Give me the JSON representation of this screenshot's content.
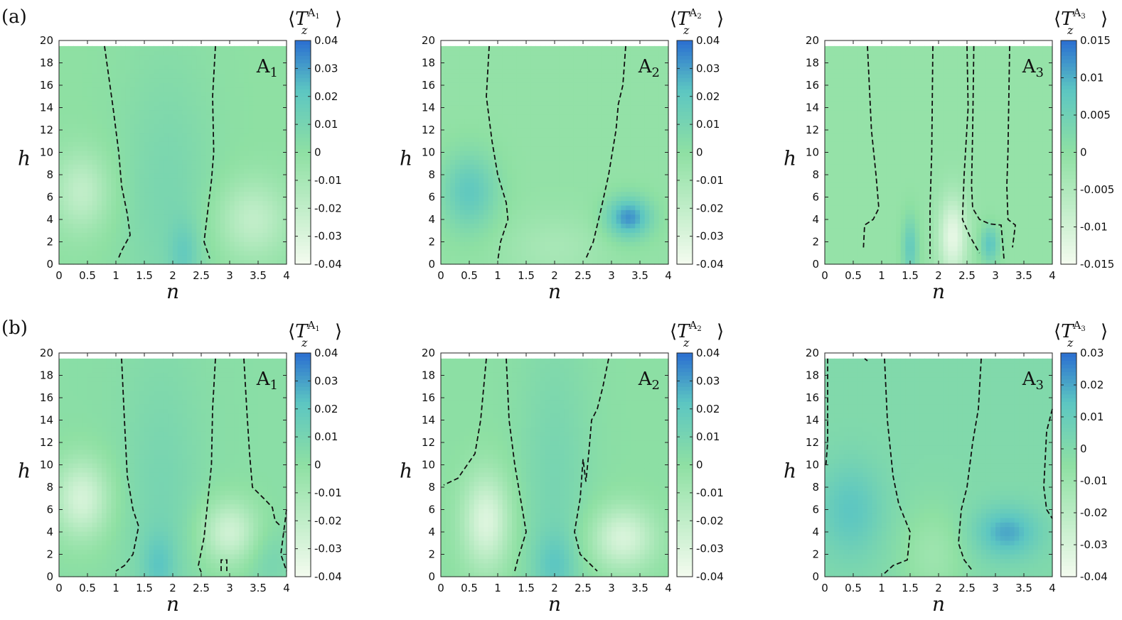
{
  "figure": {
    "row_labels": [
      "(a)",
      "(b)"
    ],
    "colors": {
      "cmap_low": "#f4fbef",
      "cmap_mid": "#8ee0a3",
      "cmap_high_a": "#5cc6c2",
      "cmap_high": "#2b6fd1",
      "contour": "#111111"
    }
  },
  "chart_data": [
    {
      "type": "heatmap",
      "row": "(a)",
      "panel_label": "A1",
      "xlabel": "n",
      "ylabel": "h",
      "xlim": [
        0,
        4
      ],
      "ylim": [
        0,
        20
      ],
      "xticks": [
        "0",
        "0.5",
        "1",
        "1.5",
        "2",
        "2.5",
        "3",
        "3.5",
        "4"
      ],
      "yticks": [
        "0",
        "2",
        "4",
        "6",
        "8",
        "10",
        "12",
        "14",
        "16",
        "18",
        "20"
      ],
      "colorbar": {
        "title": "⟨T_z^A1⟩",
        "range": [
          -0.04,
          0.04
        ],
        "ticks": [
          "-0.04",
          "-0.03",
          "-0.02",
          "-0.01",
          "0",
          "0.01",
          "0.02",
          "0.03",
          "0.04"
        ]
      },
      "background": 0.0,
      "features": [
        {
          "n": 1.9,
          "h": 6,
          "v": 0.009,
          "sn": 0.6,
          "sh": 9
        },
        {
          "n": 2.2,
          "h": 1,
          "v": 0.012,
          "sn": 0.18,
          "sh": 2
        },
        {
          "n": 0.4,
          "h": 6.5,
          "v": -0.02,
          "sn": 0.35,
          "sh": 2.5
        },
        {
          "n": 3.4,
          "h": 4,
          "v": -0.02,
          "sn": 0.45,
          "sh": 2.5
        }
      ],
      "contours": [
        [
          [
            0.8,
            19.5
          ],
          [
            0.95,
            14
          ],
          [
            1.05,
            10
          ],
          [
            1.1,
            7
          ],
          [
            1.2,
            4.5
          ],
          [
            1.25,
            2.6
          ],
          [
            1.1,
            1.2
          ],
          [
            1.05,
            0.6
          ]
        ],
        [
          [
            2.75,
            19.5
          ],
          [
            2.7,
            15
          ],
          [
            2.72,
            10
          ],
          [
            2.68,
            7.5
          ],
          [
            2.62,
            5
          ],
          [
            2.55,
            2
          ],
          [
            2.65,
            0.5
          ]
        ]
      ]
    },
    {
      "type": "heatmap",
      "row": "(a)",
      "panel_label": "A2",
      "xlabel": "n",
      "ylabel": "h",
      "xlim": [
        0,
        4
      ],
      "ylim": [
        0,
        20
      ],
      "xticks": [
        "0",
        "0.5",
        "1",
        "1.5",
        "2",
        "2.5",
        "3",
        "3.5",
        "4"
      ],
      "yticks": [
        "0",
        "2",
        "4",
        "6",
        "8",
        "10",
        "12",
        "14",
        "16",
        "18",
        "20"
      ],
      "colorbar": {
        "title": "⟨T_z^A2⟩",
        "range": [
          -0.04,
          0.04
        ],
        "ticks": [
          "-0.04",
          "-0.03",
          "-0.02",
          "-0.01",
          "0",
          "0.01",
          "0.02",
          "0.03",
          "0.04"
        ]
      },
      "background": -0.002,
      "features": [
        {
          "n": 0.5,
          "h": 6.5,
          "v": 0.022,
          "sn": 0.35,
          "sh": 2.5
        },
        {
          "n": 3.3,
          "h": 4.2,
          "v": 0.035,
          "sn": 0.28,
          "sh": 1.3
        },
        {
          "n": 2.0,
          "h": 1.5,
          "v": -0.008,
          "sn": 0.6,
          "sh": 2
        }
      ],
      "contours": [
        [
          [
            0.85,
            19.5
          ],
          [
            0.8,
            15
          ],
          [
            0.9,
            11
          ],
          [
            1.0,
            8
          ],
          [
            1.15,
            5.5
          ],
          [
            1.18,
            4
          ],
          [
            1.05,
            2
          ],
          [
            1.0,
            0.3
          ]
        ],
        [
          [
            3.25,
            19.5
          ],
          [
            3.2,
            16
          ],
          [
            3.12,
            14.3
          ],
          [
            3.08,
            12
          ],
          [
            2.95,
            8
          ],
          [
            2.82,
            5
          ],
          [
            2.68,
            2
          ],
          [
            2.55,
            0.5
          ]
        ]
      ]
    },
    {
      "type": "heatmap",
      "row": "(a)",
      "panel_label": "A3",
      "xlabel": "n",
      "ylabel": "h",
      "xlim": [
        0,
        4
      ],
      "ylim": [
        0,
        20
      ],
      "xticks": [
        "0",
        "0.5",
        "1",
        "1.5",
        "2",
        "2.5",
        "3",
        "3.5",
        "4"
      ],
      "yticks": [
        "0",
        "2",
        "4",
        "6",
        "8",
        "10",
        "12",
        "14",
        "16",
        "18",
        "20"
      ],
      "colorbar": {
        "title": "⟨T_z^A3⟩",
        "range": [
          -0.015,
          0.015
        ],
        "ticks": [
          "-0.015",
          "-0.01",
          "-0.005",
          "0",
          "0.005",
          "0.01",
          "0.015"
        ]
      },
      "background": -0.001,
      "features": [
        {
          "n": 1.5,
          "h": 1.5,
          "v": 0.008,
          "sn": 0.1,
          "sh": 2
        },
        {
          "n": 2.9,
          "h": 1.8,
          "v": 0.009,
          "sn": 0.12,
          "sh": 1.2
        },
        {
          "n": 2.25,
          "h": 2.5,
          "v": -0.012,
          "sn": 0.18,
          "sh": 2.5
        }
      ],
      "contours": [
        [
          [
            0.75,
            19.5
          ],
          [
            0.82,
            12
          ],
          [
            0.9,
            8
          ],
          [
            0.95,
            5
          ],
          [
            0.85,
            4
          ],
          [
            0.7,
            3.5
          ],
          [
            0.68,
            1.5
          ]
        ],
        [
          [
            1.9,
            19.5
          ],
          [
            1.88,
            10
          ],
          [
            1.85,
            5
          ],
          [
            1.85,
            0.5
          ]
        ],
        [
          [
            2.5,
            19.5
          ],
          [
            2.52,
            14
          ],
          [
            2.45,
            8
          ],
          [
            2.42,
            4
          ],
          [
            2.55,
            2.5
          ],
          [
            2.72,
            1
          ]
        ],
        [
          [
            2.62,
            19.5
          ],
          [
            2.6,
            12
          ],
          [
            2.58,
            7
          ],
          [
            2.6,
            5
          ],
          [
            2.72,
            4
          ],
          [
            2.9,
            3.6
          ],
          [
            3.1,
            3.5
          ],
          [
            3.15,
            0.5
          ]
        ],
        [
          [
            3.25,
            19.5
          ],
          [
            3.22,
            10
          ],
          [
            3.2,
            7
          ],
          [
            3.22,
            4
          ],
          [
            3.35,
            3.5
          ],
          [
            3.3,
            1.5
          ]
        ]
      ]
    },
    {
      "type": "heatmap",
      "row": "(b)",
      "panel_label": "A1",
      "xlabel": "n",
      "ylabel": "h",
      "xlim": [
        0,
        4
      ],
      "ylim": [
        0,
        20
      ],
      "xticks": [
        "0",
        "0.5",
        "1",
        "1.5",
        "2",
        "2.5",
        "3",
        "3.5",
        "4"
      ],
      "yticks": [
        "0",
        "2",
        "4",
        "6",
        "8",
        "10",
        "12",
        "14",
        "16",
        "18",
        "20"
      ],
      "colorbar": {
        "title": "⟨T_z^A1⟩",
        "range": [
          -0.04,
          0.04
        ],
        "ticks": [
          "-0.04",
          "-0.03",
          "-0.02",
          "-0.01",
          "0",
          "0.01",
          "0.02",
          "0.03",
          "0.04"
        ]
      },
      "background": 0.002,
      "features": [
        {
          "n": 1.8,
          "h": 7,
          "v": 0.008,
          "sn": 0.5,
          "sh": 9
        },
        {
          "n": 1.75,
          "h": 1,
          "v": 0.014,
          "sn": 0.2,
          "sh": 2
        },
        {
          "n": 0.4,
          "h": 7,
          "v": -0.03,
          "sn": 0.35,
          "sh": 2.5
        },
        {
          "n": 3.0,
          "h": 4,
          "v": -0.028,
          "sn": 0.35,
          "sh": 2
        },
        {
          "n": 3.7,
          "h": 1.5,
          "v": 0.008,
          "sn": 0.3,
          "sh": 2
        }
      ],
      "contours": [
        [
          [
            1.1,
            19.5
          ],
          [
            1.15,
            14
          ],
          [
            1.2,
            9
          ],
          [
            1.3,
            6
          ],
          [
            1.4,
            4.5
          ],
          [
            1.3,
            2
          ],
          [
            1.15,
            1
          ],
          [
            1.0,
            0.5
          ]
        ],
        [
          [
            2.75,
            19.5
          ],
          [
            2.7,
            15
          ],
          [
            2.68,
            10
          ],
          [
            2.6,
            6
          ],
          [
            2.55,
            3.5
          ],
          [
            2.45,
            1
          ],
          [
            2.5,
            0.4
          ]
        ],
        [
          [
            3.25,
            19.5
          ],
          [
            3.3,
            15
          ],
          [
            3.35,
            11
          ],
          [
            3.4,
            8
          ],
          [
            3.6,
            7
          ],
          [
            3.75,
            6.2
          ],
          [
            3.8,
            5
          ],
          [
            3.9,
            4.5
          ]
        ],
        [
          [
            2.85,
            0.5
          ],
          [
            2.85,
            1.5
          ],
          [
            2.95,
            1.5
          ],
          [
            2.95,
            0.5
          ]
        ],
        [
          [
            4.0,
            6
          ],
          [
            3.95,
            4
          ],
          [
            3.9,
            2
          ],
          [
            4.0,
            0.5
          ]
        ]
      ]
    },
    {
      "type": "heatmap",
      "row": "(b)",
      "panel_label": "A2",
      "xlabel": "n",
      "ylabel": "h",
      "xlim": [
        0,
        4
      ],
      "ylim": [
        0,
        20
      ],
      "xticks": [
        "0",
        "0.5",
        "1",
        "1.5",
        "2",
        "2.5",
        "3",
        "3.5",
        "4"
      ],
      "yticks": [
        "0",
        "2",
        "4",
        "6",
        "8",
        "10",
        "12",
        "14",
        "16",
        "18",
        "20"
      ],
      "colorbar": {
        "title": "⟨T_z^A2⟩",
        "range": [
          -0.04,
          0.04
        ],
        "ticks": [
          "-0.04",
          "-0.03",
          "-0.02",
          "-0.01",
          "0",
          "0.01",
          "0.02",
          "0.03",
          "0.04"
        ]
      },
      "background": 0.001,
      "features": [
        {
          "n": 2.0,
          "h": 8,
          "v": 0.009,
          "sn": 0.45,
          "sh": 10
        },
        {
          "n": 2.0,
          "h": 1,
          "v": 0.014,
          "sn": 0.25,
          "sh": 2
        },
        {
          "n": 0.8,
          "h": 5,
          "v": -0.032,
          "sn": 0.3,
          "sh": 3
        },
        {
          "n": 3.2,
          "h": 3.5,
          "v": -0.03,
          "sn": 0.4,
          "sh": 2
        }
      ],
      "contours": [
        [
          [
            0.8,
            19.5
          ],
          [
            0.7,
            14
          ],
          [
            0.6,
            11
          ],
          [
            0.3,
            8.8
          ],
          [
            0.05,
            8.2
          ]
        ],
        [
          [
            1.15,
            19.5
          ],
          [
            1.2,
            14
          ],
          [
            1.3,
            10
          ],
          [
            1.4,
            7
          ],
          [
            1.5,
            4
          ],
          [
            1.35,
            1.5
          ],
          [
            1.3,
            0.5
          ]
        ],
        [
          [
            2.95,
            19.5
          ],
          [
            2.85,
            17
          ],
          [
            2.75,
            15
          ],
          [
            2.65,
            14
          ],
          [
            2.6,
            11
          ],
          [
            2.55,
            8.5
          ],
          [
            2.5,
            10.5
          ],
          [
            2.45,
            7
          ],
          [
            2.35,
            4
          ],
          [
            2.45,
            2
          ],
          [
            2.65,
            1
          ],
          [
            2.75,
            0.5
          ]
        ]
      ]
    },
    {
      "type": "heatmap",
      "row": "(b)",
      "panel_label": "A3",
      "xlabel": "n",
      "ylabel": "h",
      "xlim": [
        0,
        4
      ],
      "ylim": [
        0,
        20
      ],
      "xticks": [
        "0",
        "0.5",
        "1",
        "1.5",
        "2",
        "2.5",
        "3",
        "3.5",
        "4"
      ],
      "yticks": [
        "0",
        "2",
        "4",
        "6",
        "8",
        "10",
        "12",
        "14",
        "16",
        "18",
        "20"
      ],
      "colorbar": {
        "title": "⟨T_z^A3⟩",
        "range": [
          -0.04,
          0.03
        ],
        "ticks": [
          "-0.04",
          "-0.03",
          "-0.02",
          "-0.01",
          "0",
          "0.01",
          "0.02",
          "0.03"
        ]
      },
      "background": 0.0,
      "features": [
        {
          "n": 0.45,
          "h": 6,
          "v": 0.014,
          "sn": 0.4,
          "sh": 3
        },
        {
          "n": 3.2,
          "h": 4,
          "v": 0.02,
          "sn": 0.4,
          "sh": 1.6
        },
        {
          "n": 1.9,
          "h": 2,
          "v": -0.01,
          "sn": 0.4,
          "sh": 3
        }
      ],
      "contours": [
        [
          [
            0.05,
            19.5
          ],
          [
            0.05,
            12
          ],
          [
            0.02,
            10
          ]
        ],
        [
          [
            0.7,
            19.5
          ],
          [
            0.75,
            19.3
          ]
        ],
        [
          [
            1.05,
            19.5
          ],
          [
            1.1,
            14
          ],
          [
            1.2,
            9
          ],
          [
            1.3,
            6.5
          ],
          [
            1.5,
            4
          ],
          [
            1.45,
            1.5
          ],
          [
            1.2,
            1
          ],
          [
            1.05,
            0.3
          ]
        ],
        [
          [
            2.75,
            19.5
          ],
          [
            2.7,
            15
          ],
          [
            2.6,
            12
          ],
          [
            2.55,
            10
          ],
          [
            2.5,
            8
          ],
          [
            2.4,
            6
          ],
          [
            2.35,
            3
          ],
          [
            2.45,
            1.5
          ],
          [
            2.6,
            0.5
          ]
        ],
        [
          [
            4.0,
            15
          ],
          [
            3.9,
            13
          ],
          [
            3.85,
            8
          ],
          [
            3.9,
            6
          ],
          [
            4.0,
            5.2
          ]
        ]
      ]
    }
  ]
}
